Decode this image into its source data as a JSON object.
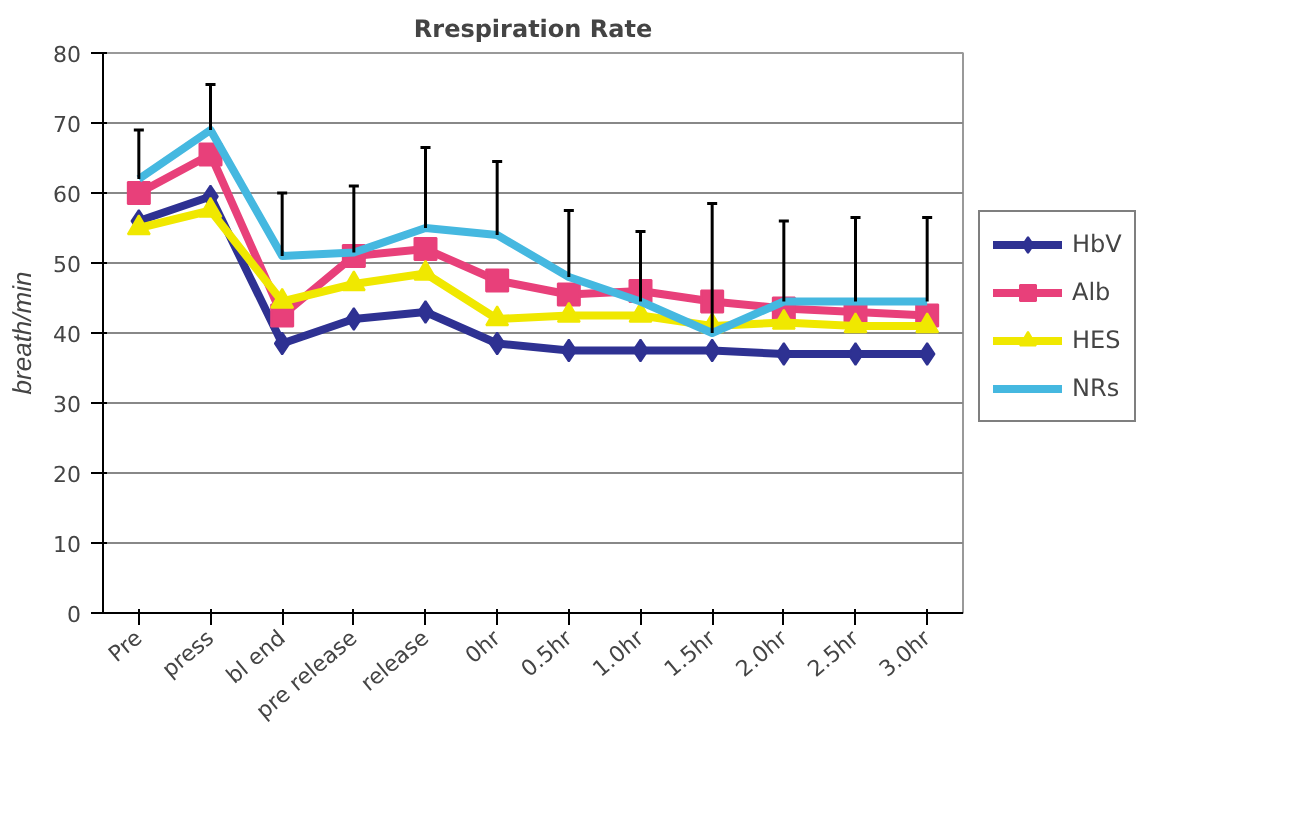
{
  "chart_data": {
    "type": "line",
    "title": "Rrespiration Rate",
    "ylabel": "breath/min",
    "categories": [
      "Pre",
      "press",
      "bl end",
      "pre release",
      "release",
      "0hr",
      "0.5hr",
      "1.0hr",
      "1.5hr",
      "2.0hr",
      "2.5hr",
      "3.0hr"
    ],
    "ylim": [
      0,
      80
    ],
    "yticks": [
      0,
      10,
      20,
      30,
      40,
      50,
      60,
      70,
      80
    ],
    "grid": "y",
    "legend": "right",
    "series": [
      {
        "name": "HbV",
        "color": "#2e3192",
        "marker": "diamond",
        "values": [
          56,
          59.5,
          38.5,
          42,
          43,
          38.5,
          37.5,
          37.5,
          37.5,
          37,
          37,
          37
        ]
      },
      {
        "name": "Alb",
        "color": "#e8407a",
        "marker": "square",
        "values": [
          60,
          65.5,
          42.5,
          51,
          52,
          47.5,
          45.5,
          46,
          44.5,
          43.5,
          43,
          42.5
        ]
      },
      {
        "name": "HES",
        "color": "#f0e800",
        "marker": "triangle",
        "values": [
          55,
          57.5,
          44.5,
          47,
          48.5,
          42,
          42.5,
          42.5,
          41,
          41.5,
          41,
          41
        ]
      },
      {
        "name": "NRs",
        "color": "#45b8e0",
        "marker": "none",
        "values": [
          62,
          69,
          51,
          51.5,
          55,
          54,
          48,
          44.5,
          40,
          44.5,
          44.5,
          44.5
        ],
        "errors": [
          [
            62,
            69
          ],
          [
            69,
            75.5
          ],
          [
            51,
            60
          ],
          [
            51.5,
            61
          ],
          [
            55,
            66.5
          ],
          [
            54,
            64.5
          ],
          [
            48,
            57.5
          ],
          [
            44.5,
            54.5
          ],
          [
            40,
            58.5
          ],
          [
            44.5,
            56
          ],
          [
            44.5,
            56.5
          ],
          [
            44.5,
            56.5
          ]
        ]
      }
    ]
  }
}
